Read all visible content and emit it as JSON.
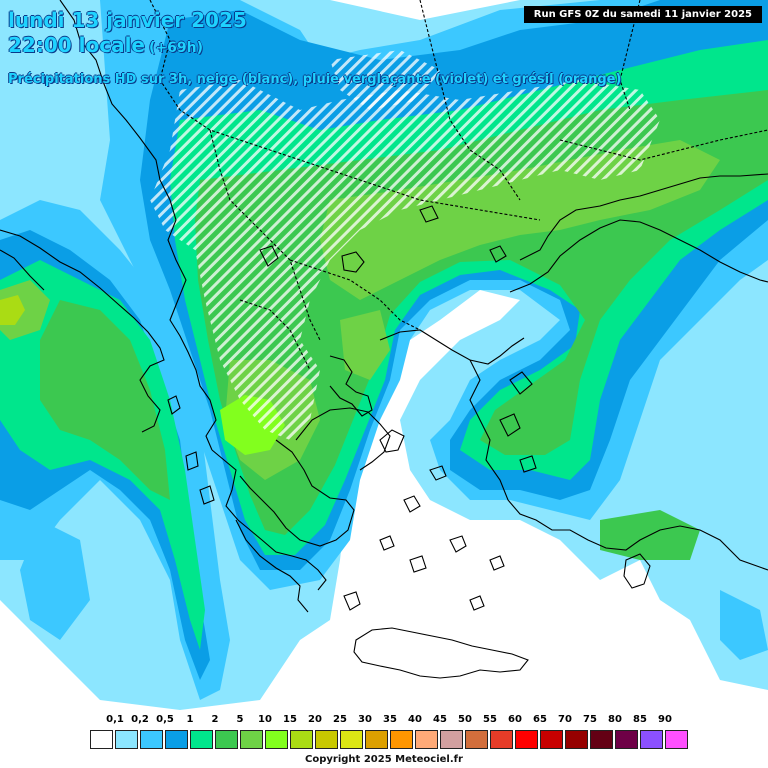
{
  "header": {
    "date_line": "lundi 13 janvier 2025",
    "time_line": "22:00 locale",
    "offset": "(+69h)",
    "description": "Précipitations HD sur 3h, neige (blanc), pluie verglaçante (violet) et grésil (orange)",
    "run_info": "Run GFS 0Z du samedi 11 janvier 2025"
  },
  "legend": {
    "labels": [
      "0,1",
      "0,2",
      "0,5",
      "1",
      "2",
      "5",
      "10",
      "15",
      "20",
      "25",
      "30",
      "35",
      "40",
      "45",
      "50",
      "55",
      "60",
      "65",
      "70",
      "75",
      "80",
      "85",
      "90"
    ],
    "colors": [
      "#ffffff",
      "#8ce6ff",
      "#3cc8ff",
      "#0a9ee6",
      "#00e68c",
      "#3cc850",
      "#6ed246",
      "#82ff1e",
      "#aadc14",
      "#c8c800",
      "#dce614",
      "#dca000",
      "#ff9600",
      "#ffaa78",
      "#d2a0a0",
      "#d26e3c",
      "#e63c28",
      "#ff0000",
      "#c80000",
      "#960000",
      "#640014",
      "#6e0046",
      "#8c50ff",
      "#ff50ff"
    ]
  },
  "footer": {
    "copyright": "Copyright 2025 Meteociel.fr"
  },
  "map": {
    "colors": {
      "sea": "#ffffff",
      "light_blue": "#8ce6ff",
      "mid_blue": "#3cc8ff",
      "deep_blue": "#0a9ee6",
      "green_light": "#00e68c",
      "green": "#3cc850",
      "green_dark": "#6ed246",
      "lime": "#82ff1e",
      "borders": "#000000"
    }
  }
}
